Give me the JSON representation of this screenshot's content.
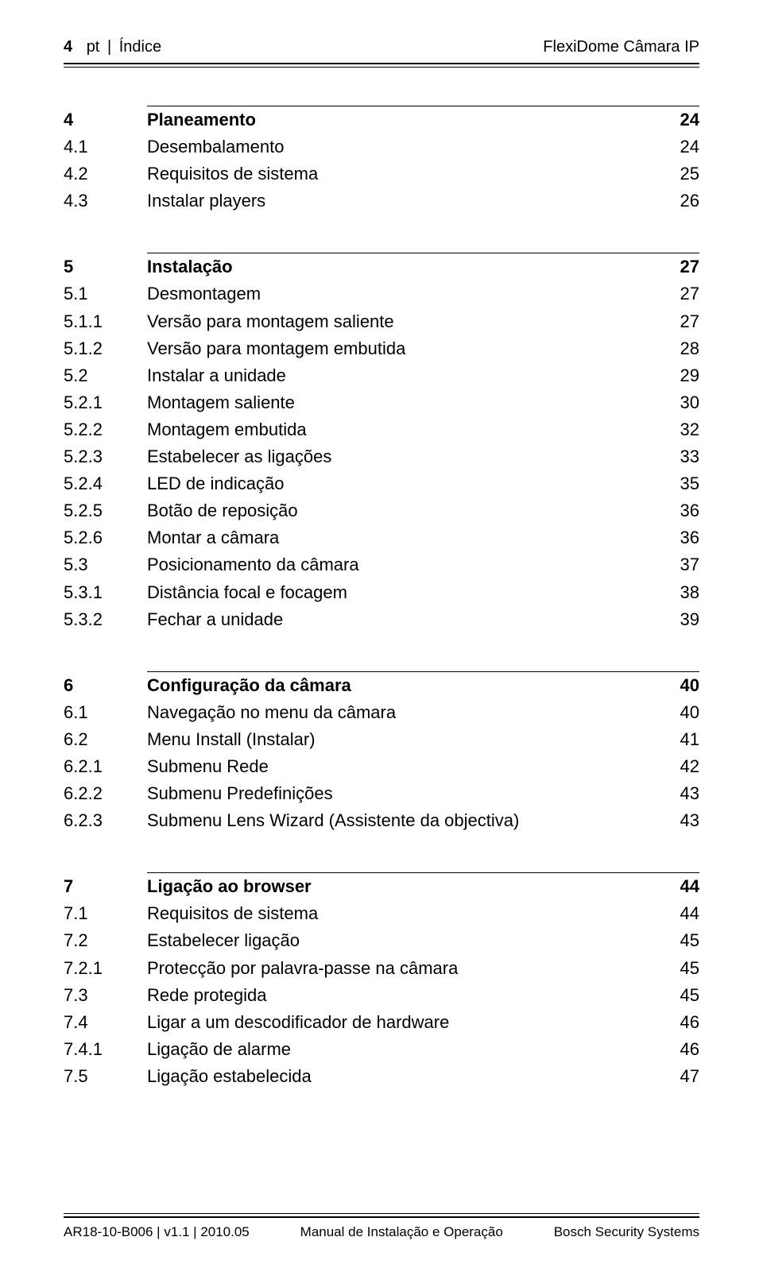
{
  "header": {
    "page_number": "4",
    "lang": "pt",
    "separator": "|",
    "section": "Índice",
    "product": "FlexiDome Câmara IP"
  },
  "sections": [
    {
      "num": "4",
      "title": "Planeamento",
      "page": "24",
      "items": [
        {
          "num": "4.1",
          "title": "Desembalamento",
          "page": "24"
        },
        {
          "num": "4.2",
          "title": "Requisitos de sistema",
          "page": "25"
        },
        {
          "num": "4.3",
          "title": "Instalar players",
          "page": "26"
        }
      ]
    },
    {
      "num": "5",
      "title": "Instalação",
      "page": "27",
      "items": [
        {
          "num": "5.1",
          "title": "Desmontagem",
          "page": "27"
        },
        {
          "num": "5.1.1",
          "title": "Versão para montagem saliente",
          "page": "27"
        },
        {
          "num": "5.1.2",
          "title": "Versão para montagem embutida",
          "page": "28"
        },
        {
          "num": "5.2",
          "title": "Instalar a unidade",
          "page": "29"
        },
        {
          "num": "5.2.1",
          "title": "Montagem saliente",
          "page": "30"
        },
        {
          "num": "5.2.2",
          "title": "Montagem embutida",
          "page": "32"
        },
        {
          "num": "5.2.3",
          "title": "Estabelecer as ligações",
          "page": "33"
        },
        {
          "num": "5.2.4",
          "title": "LED de indicação",
          "page": "35"
        },
        {
          "num": "5.2.5",
          "title": "Botão de reposição",
          "page": "36"
        },
        {
          "num": "5.2.6",
          "title": "Montar a câmara",
          "page": "36"
        },
        {
          "num": "5.3",
          "title": "Posicionamento da câmara",
          "page": "37"
        },
        {
          "num": "5.3.1",
          "title": "Distância focal e focagem",
          "page": "38"
        },
        {
          "num": "5.3.2",
          "title": "Fechar a unidade",
          "page": "39"
        }
      ]
    },
    {
      "num": "6",
      "title": "Configuração da câmara",
      "page": "40",
      "items": [
        {
          "num": "6.1",
          "title": "Navegação no menu da câmara",
          "page": "40"
        },
        {
          "num": "6.2",
          "title": "Menu Install (Instalar)",
          "page": "41"
        },
        {
          "num": "6.2.1",
          "title": "Submenu Rede",
          "page": "42"
        },
        {
          "num": "6.2.2",
          "title": "Submenu Predefinições",
          "page": "43"
        },
        {
          "num": "6.2.3",
          "title": "Submenu Lens Wizard (Assistente da objectiva)",
          "page": "43"
        }
      ]
    },
    {
      "num": "7",
      "title": "Ligação ao browser",
      "page": "44",
      "items": [
        {
          "num": "7.1",
          "title": "Requisitos de sistema",
          "page": "44"
        },
        {
          "num": "7.2",
          "title": "Estabelecer ligação",
          "page": "45"
        },
        {
          "num": "7.2.1",
          "title": "Protecção por palavra-passe na câmara",
          "page": "45"
        },
        {
          "num": "7.3",
          "title": "Rede protegida",
          "page": "45"
        },
        {
          "num": "7.4",
          "title": "Ligar a um descodificador de hardware",
          "page": "46"
        },
        {
          "num": "7.4.1",
          "title": "Ligação de alarme",
          "page": "46"
        },
        {
          "num": "7.5",
          "title": "Ligação estabelecida",
          "page": "47"
        }
      ]
    }
  ],
  "footer": {
    "left": "AR18-10-B006 | v1.1 | 2010.05",
    "center": "Manual de Instalação e Operação",
    "right": "Bosch Security Systems"
  }
}
